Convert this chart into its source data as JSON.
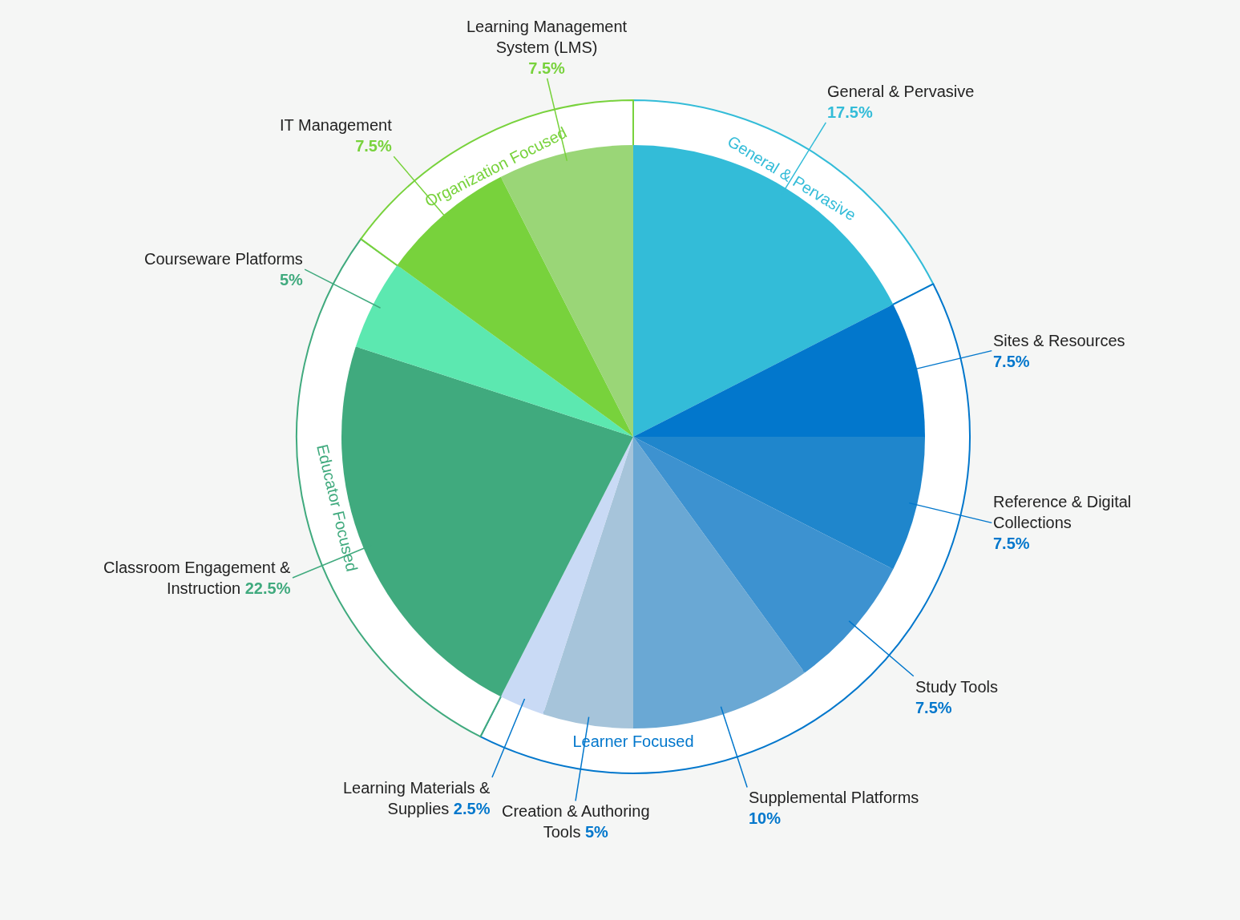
{
  "chart_data": {
    "type": "pie",
    "legend": false,
    "categories": [
      "General & Pervasive",
      "Sites & Resources",
      "Reference & Digital Collections",
      "Study Tools",
      "Supplemental Platforms",
      "Creation & Authoring Tools",
      "Learning Materials & Supplies",
      "Classroom Engagement & Instruction",
      "Courseware Platforms",
      "IT Management",
      "Learning Management System (LMS)"
    ],
    "annotations": [
      "General & Pervasive",
      "Learner Focused",
      "Educator Focused",
      "Organization Focused"
    ],
    "series": [
      {
        "values": [
          17.5,
          7.5,
          7.5,
          7.5,
          10,
          5,
          2.5,
          22.5,
          5,
          7.5,
          7.5
        ],
        "value_labels": [
          "17.5%",
          "7.5%",
          "7.5%",
          "7.5%",
          "10%",
          "5%",
          "2.5%",
          "22.5%",
          "5%",
          "7.5%",
          "7.5%"
        ],
        "colors": [
          "#33bcd8",
          "#0277cc",
          "#1f86cc",
          "#3d92d0",
          "#6aa8d4",
          "#a6c4da",
          "#c9daf5",
          "#40aa7e",
          "#5ce8b0",
          "#78d23c",
          "#9ad677"
        ]
      },
      {
        "type": "donut",
        "values": [
          17.5,
          40,
          null,
          null,
          null,
          null,
          null,
          27.5,
          null,
          15,
          null
        ],
        "colors": [
          "#ffffff",
          "#ffffff",
          null,
          null,
          null,
          null,
          null,
          "#ffffff",
          null,
          "#ffffff",
          null
        ]
      }
    ]
  }
}
